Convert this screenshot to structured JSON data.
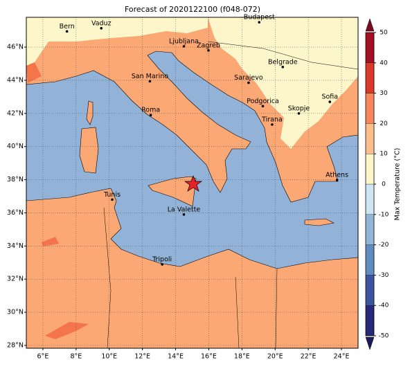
{
  "map": {
    "title": "Forecast of 2020122100 (f048-072)",
    "xlim": [
      5,
      25
    ],
    "ylim": [
      27.83,
      47.8
    ],
    "xticks": [
      {
        "value": 6,
        "label": "6°E"
      },
      {
        "value": 8,
        "label": "8°E"
      },
      {
        "value": 10,
        "label": "10°E"
      },
      {
        "value": 12,
        "label": "12°E"
      },
      {
        "value": 14,
        "label": "14°E"
      },
      {
        "value": 16,
        "label": "16°E"
      },
      {
        "value": 18,
        "label": "18°E"
      },
      {
        "value": 20,
        "label": "20°E"
      },
      {
        "value": 22,
        "label": "22°E"
      },
      {
        "value": 24,
        "label": "24°E"
      }
    ],
    "yticks": [
      {
        "value": 28,
        "label": "28°N"
      },
      {
        "value": 30,
        "label": "30°N"
      },
      {
        "value": 32,
        "label": "32°N"
      },
      {
        "value": 34,
        "label": "34°N"
      },
      {
        "value": 36,
        "label": "36°N"
      },
      {
        "value": 38,
        "label": "38°N"
      },
      {
        "value": 40,
        "label": "40°N"
      },
      {
        "value": 42,
        "label": "42°N"
      },
      {
        "value": 44,
        "label": "44°N"
      },
      {
        "value": 46,
        "label": "46°N"
      }
    ],
    "grid": true,
    "cities": [
      "Bern",
      "Vaduz",
      "Budapest",
      "Ljubljana",
      "Zagreb",
      "Belgrade",
      "San Marino",
      "Sarajevo",
      "Sofia",
      "Roma",
      "Podgorica",
      "Skopje",
      "Tirana",
      "Athens",
      "Tunis",
      "La Valette",
      "Tripoli"
    ],
    "colorbar": {
      "label": "Max Temperature (°C)",
      "ticks": [
        -50,
        -40,
        -30,
        -20,
        -10,
        0,
        10,
        20,
        30,
        40,
        50
      ],
      "colors": [
        "#26287a",
        "#3c55a0",
        "#5f8bbf",
        "#92b5d8",
        "#cfe6f2",
        "#fdf6c8",
        "#fdc08c",
        "#f7875a",
        "#d9382a",
        "#a50f26"
      ]
    }
  }
}
